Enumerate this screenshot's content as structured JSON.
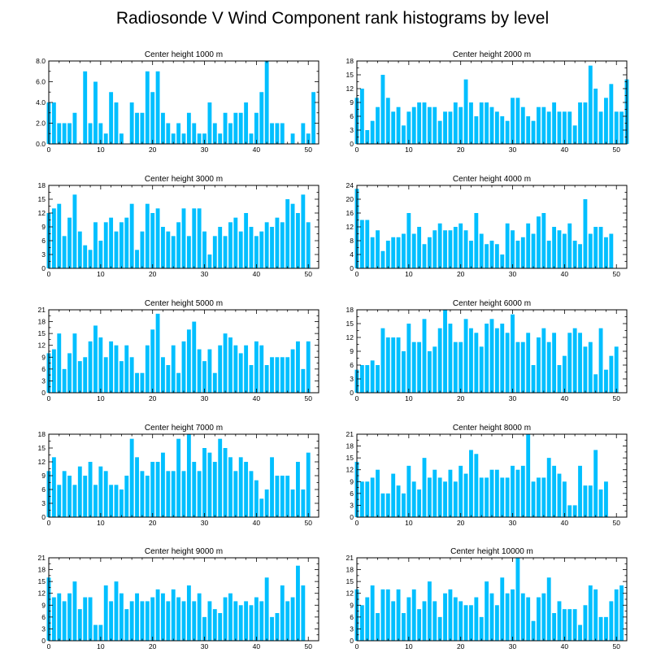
{
  "title": "Radiosonde V Wind Component rank histograms by level",
  "bar_color": "#00BFFF",
  "chart_data": [
    {
      "type": "bar",
      "title": "Center height 1000 m",
      "xticks": [
        0,
        10,
        20,
        30,
        40,
        50
      ],
      "ylim": [
        0,
        8
      ],
      "yticks": [
        "0.0",
        "2.0",
        "4.0",
        "6.0",
        "8.0"
      ],
      "values": [
        4,
        4,
        2,
        2,
        2,
        3,
        0,
        7,
        2,
        6,
        2,
        1,
        5,
        4,
        1,
        0,
        4,
        3,
        3,
        7,
        5,
        7,
        3,
        2,
        1,
        2,
        1,
        3,
        2,
        1,
        1,
        4,
        2,
        1,
        3,
        2,
        3,
        3,
        4,
        1,
        3,
        5,
        8,
        2,
        2,
        2,
        0,
        1,
        0,
        2,
        1,
        5
      ]
    },
    {
      "type": "bar",
      "title": "Center height 2000 m",
      "xticks": [
        0,
        10,
        20,
        30,
        40,
        50
      ],
      "ylim": [
        0,
        18
      ],
      "yticks": [
        "0",
        "3",
        "6",
        "9",
        "12",
        "15",
        "18"
      ],
      "values": [
        10,
        12,
        3,
        5,
        8,
        15,
        10,
        7,
        8,
        4,
        7,
        8,
        9,
        9,
        8,
        8,
        5,
        7,
        7,
        9,
        8,
        14,
        9,
        6,
        9,
        9,
        8,
        7,
        6,
        5,
        10,
        10,
        8,
        6,
        5,
        8,
        8,
        7,
        9,
        7,
        7,
        7,
        4,
        9,
        9,
        17,
        12,
        7,
        10,
        13,
        7,
        7,
        14
      ]
    },
    {
      "type": "bar",
      "title": "Center height 3000 m",
      "xticks": [
        0,
        10,
        20,
        30,
        40,
        50
      ],
      "ylim": [
        0,
        18
      ],
      "yticks": [
        "0",
        "3",
        "6",
        "9",
        "12",
        "15",
        "18"
      ],
      "values": [
        12,
        13,
        14,
        7,
        11,
        16,
        8,
        5,
        4,
        10,
        6,
        10,
        11,
        8,
        10,
        11,
        14,
        4,
        8,
        14,
        12,
        13,
        9,
        8,
        7,
        10,
        13,
        7,
        13,
        13,
        8,
        3,
        7,
        9,
        7,
        10,
        11,
        8,
        12,
        9,
        7,
        8,
        10,
        9,
        11,
        10,
        15,
        14,
        12,
        16,
        10
      ]
    },
    {
      "type": "bar",
      "title": "Center height 4000 m",
      "xticks": [
        0,
        10,
        20,
        30,
        40,
        50
      ],
      "ylim": [
        0,
        24
      ],
      "yticks": [
        "0",
        "4",
        "8",
        "12",
        "16",
        "20",
        "24"
      ],
      "values": [
        23,
        14,
        14,
        9,
        11,
        5,
        8,
        9,
        9,
        10,
        16,
        10,
        12,
        7,
        9,
        11,
        13,
        11,
        11,
        12,
        13,
        11,
        8,
        16,
        10,
        7,
        8,
        7,
        4,
        13,
        11,
        8,
        9,
        13,
        10,
        15,
        16,
        8,
        12,
        11,
        10,
        13,
        8,
        7,
        20,
        10,
        12,
        12,
        9,
        10
      ]
    },
    {
      "type": "bar",
      "title": "Center height 5000 m",
      "xticks": [
        0,
        10,
        20,
        30,
        40,
        50
      ],
      "ylim": [
        0,
        21
      ],
      "yticks": [
        "0",
        "3",
        "6",
        "9",
        "12",
        "15",
        "18",
        "21"
      ],
      "values": [
        10,
        11,
        15,
        6,
        10,
        15,
        8,
        9,
        13,
        17,
        14,
        9,
        13,
        12,
        8,
        12,
        9,
        5,
        5,
        12,
        16,
        20,
        9,
        7,
        12,
        5,
        13,
        16,
        18,
        11,
        8,
        11,
        5,
        12,
        15,
        14,
        12,
        10,
        12,
        7,
        13,
        12,
        7,
        9,
        9,
        9,
        9,
        11,
        13,
        6,
        13
      ]
    },
    {
      "type": "bar",
      "title": "Center height 6000 m",
      "xticks": [
        0,
        10,
        20,
        30,
        40,
        50
      ],
      "ylim": [
        0,
        18
      ],
      "yticks": [
        "0",
        "3",
        "6",
        "9",
        "12",
        "15",
        "18"
      ],
      "values": [
        5,
        6,
        6,
        7,
        6,
        14,
        12,
        12,
        12,
        9,
        15,
        11,
        11,
        16,
        9,
        10,
        14,
        18,
        15,
        11,
        11,
        16,
        14,
        13,
        10,
        15,
        16,
        14,
        15,
        13,
        17,
        11,
        11,
        13,
        6,
        12,
        14,
        11,
        13,
        6,
        8,
        13,
        14,
        13,
        10,
        11,
        4,
        14,
        5,
        8,
        10
      ]
    },
    {
      "type": "bar",
      "title": "Center height 7000 m",
      "xticks": [
        0,
        10,
        20,
        30,
        40,
        50
      ],
      "ylim": [
        0,
        18
      ],
      "yticks": [
        "0",
        "3",
        "6",
        "9",
        "12",
        "15",
        "18"
      ],
      "values": [
        10,
        13,
        7,
        10,
        9,
        7,
        11,
        9,
        12,
        7,
        11,
        10,
        7,
        7,
        6,
        9,
        17,
        13,
        10,
        9,
        12,
        12,
        14,
        10,
        10,
        17,
        10,
        18,
        12,
        10,
        15,
        14,
        12,
        17,
        15,
        13,
        10,
        13,
        12,
        10,
        8,
        4,
        6,
        13,
        9,
        9,
        9,
        6,
        12,
        6,
        14
      ]
    },
    {
      "type": "bar",
      "title": "Center height 8000 m",
      "xticks": [
        0,
        10,
        20,
        30,
        40,
        50
      ],
      "ylim": [
        0,
        21
      ],
      "yticks": [
        "0",
        "3",
        "6",
        "9",
        "12",
        "15",
        "18",
        "21"
      ],
      "values": [
        14,
        9,
        9,
        10,
        12,
        6,
        6,
        11,
        8,
        6,
        13,
        9,
        7,
        15,
        10,
        12,
        10,
        9,
        12,
        9,
        13,
        11,
        17,
        16,
        10,
        10,
        12,
        12,
        10,
        10,
        13,
        12,
        13,
        21,
        9,
        10,
        10,
        15,
        13,
        11,
        9,
        3,
        3,
        13,
        8,
        8,
        17,
        7,
        9
      ]
    },
    {
      "type": "bar",
      "title": "Center height 9000 m",
      "xticks": [
        0,
        10,
        20,
        30,
        40,
        50
      ],
      "ylim": [
        0,
        21
      ],
      "yticks": [
        "0",
        "3",
        "6",
        "9",
        "12",
        "15",
        "18",
        "21"
      ],
      "values": [
        16,
        11,
        12,
        10,
        12,
        15,
        8,
        11,
        11,
        4,
        4,
        14,
        10,
        15,
        12,
        8,
        10,
        12,
        10,
        10,
        11,
        13,
        12,
        10,
        13,
        11,
        10,
        14,
        10,
        12,
        6,
        10,
        8,
        7,
        11,
        12,
        10,
        9,
        10,
        9,
        11,
        10,
        16,
        6,
        7,
        14,
        10,
        11,
        19,
        14
      ]
    },
    {
      "type": "bar",
      "title": "Center height 10000 m",
      "xticks": [
        0,
        10,
        20,
        30,
        40,
        50
      ],
      "ylim": [
        0,
        21
      ],
      "yticks": [
        "0",
        "3",
        "6",
        "9",
        "12",
        "15",
        "18",
        "21"
      ],
      "values": [
        13,
        9,
        11,
        14,
        7,
        13,
        13,
        10,
        13,
        7,
        11,
        13,
        8,
        10,
        15,
        10,
        6,
        12,
        13,
        11,
        10,
        9,
        9,
        11,
        6,
        15,
        12,
        9,
        16,
        12,
        13,
        21,
        12,
        11,
        5,
        11,
        12,
        16,
        7,
        10,
        8,
        8,
        8,
        4,
        9,
        14,
        13,
        6,
        6,
        10,
        13,
        14
      ]
    }
  ]
}
